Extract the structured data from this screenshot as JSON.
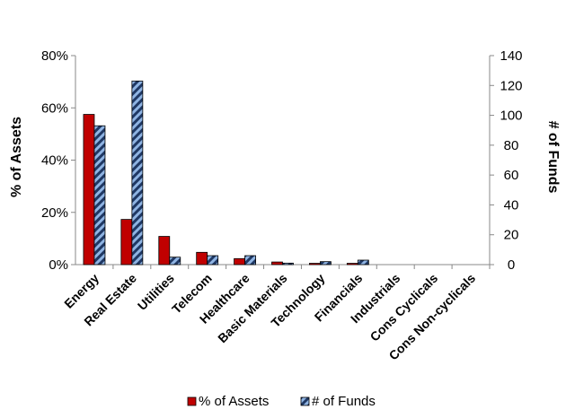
{
  "chart_data": {
    "type": "bar",
    "categories": [
      "Energy",
      "Real Estate",
      "Utilities",
      "Telecom",
      "Healthcare",
      "Basic Materials",
      "Technology",
      "Financials",
      "Industrials",
      "Cons Cyclicals",
      "Cons Non-cyclicals"
    ],
    "series": [
      {
        "name": "% of Assets",
        "axis": "left",
        "color": "#c00000",
        "values": [
          57.5,
          17.3,
          10.8,
          4.7,
          2.3,
          1.0,
          0.5,
          0.5,
          0.0,
          0.0,
          0.0
        ]
      },
      {
        "name": "# of Funds",
        "axis": "right",
        "color": "#1f3864",
        "hatch_color": "#8fb4e3",
        "values": [
          93,
          123,
          5,
          6,
          6,
          1,
          2,
          3,
          0,
          0,
          0
        ]
      }
    ],
    "ylabel": "% of Assets",
    "y2label": "# of Funds",
    "ylim": [
      0,
      80
    ],
    "y2lim": [
      0,
      140
    ],
    "yticks": [
      "0%",
      "20%",
      "40%",
      "60%",
      "80%"
    ],
    "y2ticks": [
      "0",
      "20",
      "40",
      "60",
      "80",
      "100",
      "120",
      "140"
    ],
    "legend": "bottom",
    "grid": false
  }
}
